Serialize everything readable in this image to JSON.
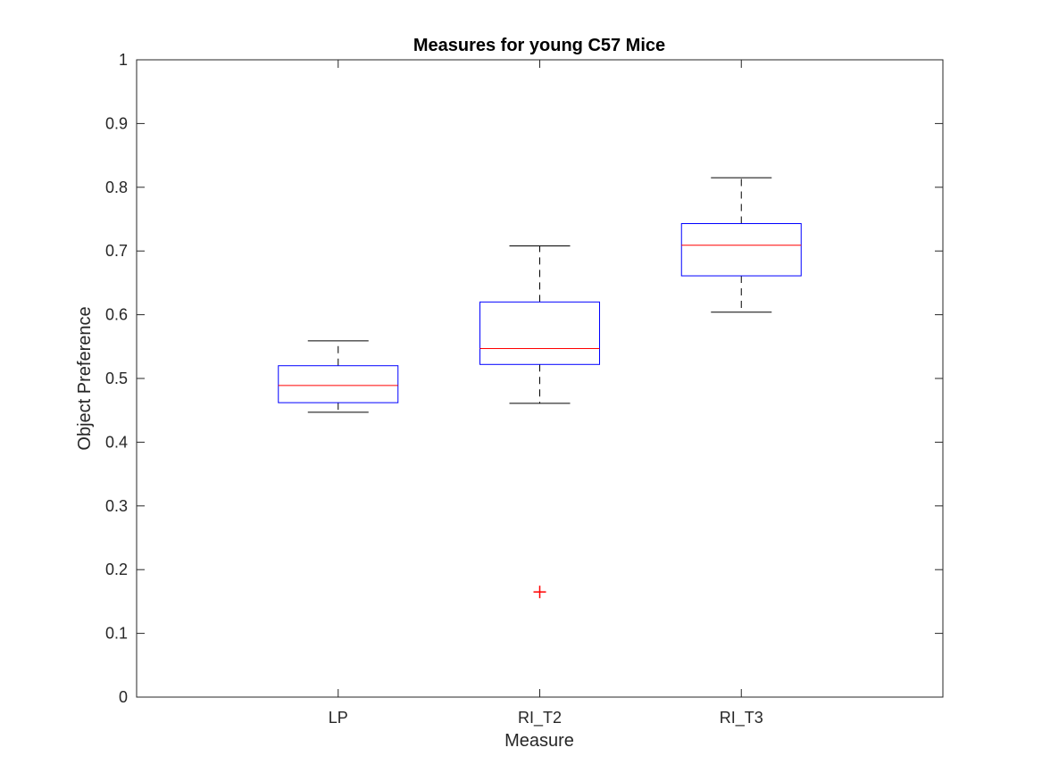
{
  "chart_data": {
    "type": "box",
    "title": "Measures for young C57 Mice",
    "xlabel": "Measure",
    "ylabel": "Object Preference",
    "ylim": [
      0,
      1
    ],
    "yticks": [
      "0",
      "0.1",
      "0.2",
      "0.3",
      "0.4",
      "0.5",
      "0.6",
      "0.7",
      "0.8",
      "0.9",
      "1"
    ],
    "categories": [
      "LP",
      "RI_T2",
      "RI_T3"
    ],
    "boxes": [
      {
        "category": "LP",
        "whisker_low": 0.447,
        "q1": 0.462,
        "median": 0.489,
        "q3": 0.52,
        "whisker_high": 0.559,
        "outliers": []
      },
      {
        "category": "RI_T2",
        "whisker_low": 0.461,
        "q1": 0.522,
        "median": 0.547,
        "q3": 0.62,
        "whisker_high": 0.708,
        "outliers": [
          0.165
        ]
      },
      {
        "category": "RI_T3",
        "whisker_low": 0.604,
        "q1": 0.661,
        "median": 0.709,
        "q3": 0.743,
        "whisker_high": 0.815,
        "outliers": []
      }
    ],
    "grid": false,
    "colors": {
      "box": "#0000ff",
      "median": "#ff0000",
      "whisker": "#000000",
      "outlier": "#ff0000",
      "axes": "#262626"
    }
  }
}
